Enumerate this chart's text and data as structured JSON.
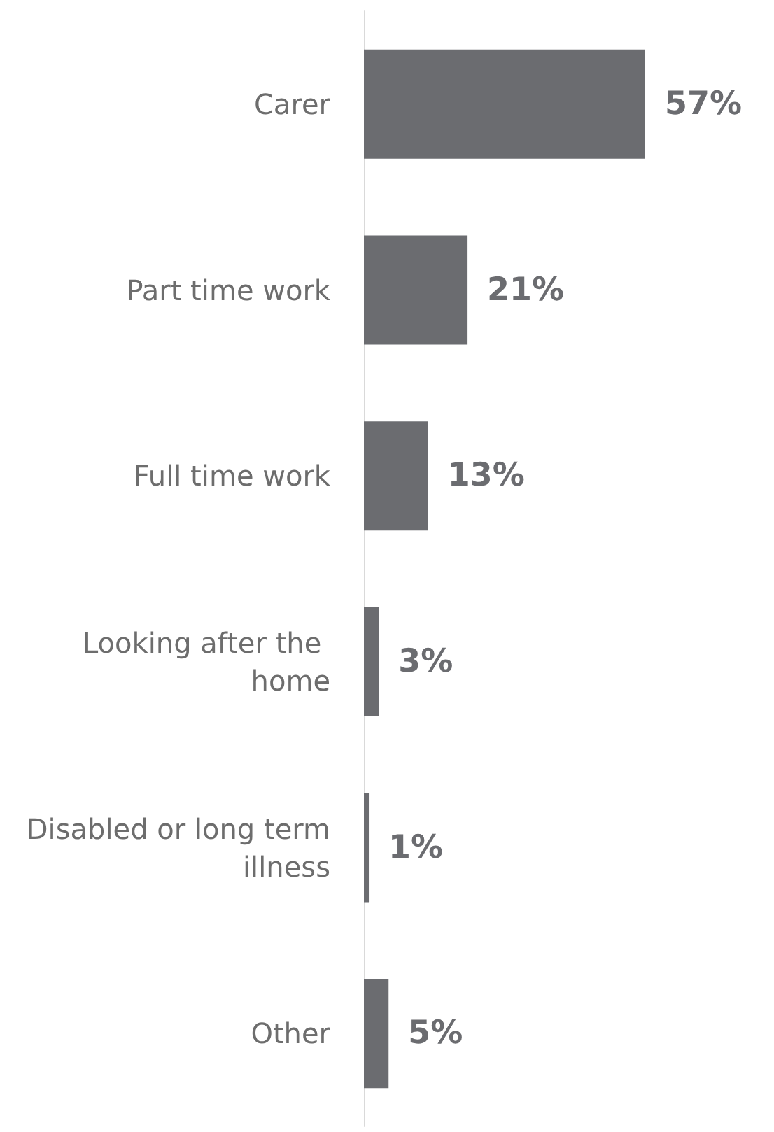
{
  "chart_data": {
    "type": "bar",
    "orientation": "horizontal",
    "categories": [
      "Carer",
      "Part time work",
      "Full time work",
      "Looking after the home",
      "Disabled or long term illness",
      "Other"
    ],
    "values": [
      57,
      21,
      13,
      3,
      1,
      5
    ],
    "value_labels": [
      "57%",
      "21%",
      "13%",
      "3%",
      "1%",
      "5%"
    ],
    "color": "#6b6c70"
  }
}
